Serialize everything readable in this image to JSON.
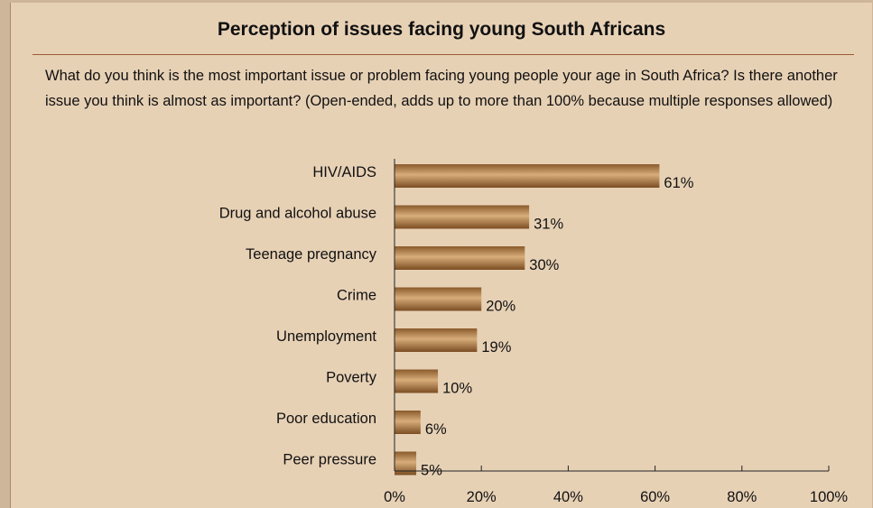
{
  "chart_data": {
    "type": "bar",
    "orientation": "horizontal",
    "title": "Perception of issues facing young South Africans",
    "subtitle": "What do you think is the most important issue or problem facing young people your age in South Africa? Is there another issue you think is almost as important? (Open-ended, adds up to more than 100% because multiple responses allowed)",
    "categories": [
      "HIV/AIDS",
      "Drug and alcohol abuse",
      "Teenage pregnancy",
      "Crime",
      "Unemployment",
      "Poverty",
      "Poor education",
      "Peer pressure"
    ],
    "values": [
      61,
      31,
      30,
      20,
      19,
      10,
      6,
      5
    ],
    "value_labels": [
      "61%",
      "31%",
      "30%",
      "20%",
      "19%",
      "10%",
      "6%",
      "5%"
    ],
    "xlim": [
      0,
      100
    ],
    "x_ticks": [
      0,
      20,
      40,
      60,
      80,
      100
    ],
    "x_tick_labels": [
      "0%",
      "20%",
      "40%",
      "60%",
      "80%",
      "100%"
    ],
    "xlabel": "",
    "ylabel": "",
    "grid": false,
    "bar_color": "#a5733f",
    "panel_color": "#e7d1b5",
    "rule_color": "#9a5a33"
  }
}
